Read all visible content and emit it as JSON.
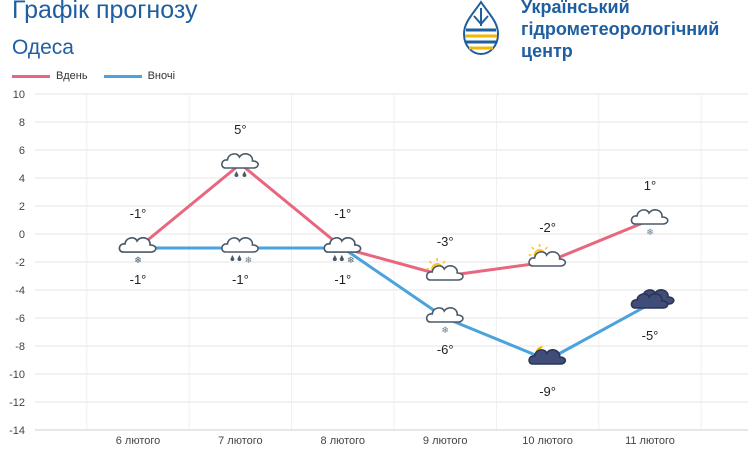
{
  "header": {
    "title": "Графік прогнозу",
    "subtitle": "Одеса",
    "org_lines": [
      "Український",
      "гідрометеорологічний",
      "центр"
    ]
  },
  "colors": {
    "day": "#e8667e",
    "night": "#4aa3dc",
    "title": "#1f5fa0",
    "grid": "#e6e6e6"
  },
  "chart_data": {
    "type": "line",
    "categories": [
      "6 лютого",
      "7 лютого",
      "8 лютого",
      "9 лютого",
      "10 лютого",
      "11 лютого"
    ],
    "series": [
      {
        "name": "Вдень",
        "values": [
          -1,
          5,
          -1,
          -3,
          -2,
          1
        ],
        "labels": [
          "-1°",
          "5°",
          "-1°",
          "-3°",
          "-2°",
          "1°"
        ],
        "icons": [
          "cloud-snow-icon",
          "cloud-rain-icon",
          "cloud-rain-snow-icon",
          "sun-cloud-icon",
          "sun-cloud-icon",
          "cloud-snow-icon"
        ]
      },
      {
        "name": "Вночі",
        "values": [
          -1,
          -1,
          -1,
          -6,
          -9,
          -5
        ],
        "labels": [
          "-1°",
          "-1°",
          "-1°",
          "-6°",
          "-9°",
          "-5°"
        ],
        "icons": [
          "cloud-snow-icon",
          "cloud-rain-snow-icon",
          "cloud-rain-snow-icon",
          "cloud-snow-icon",
          "moon-cloud-icon",
          "dark-clouds-icon"
        ]
      }
    ],
    "ylim": [
      -14,
      10
    ],
    "yticks": [
      "10",
      "8",
      "6",
      "4",
      "2",
      "0",
      "-2",
      "-4",
      "-6",
      "-8",
      "-10",
      "-12",
      "-14"
    ],
    "grid": true,
    "legend": "top-left"
  }
}
